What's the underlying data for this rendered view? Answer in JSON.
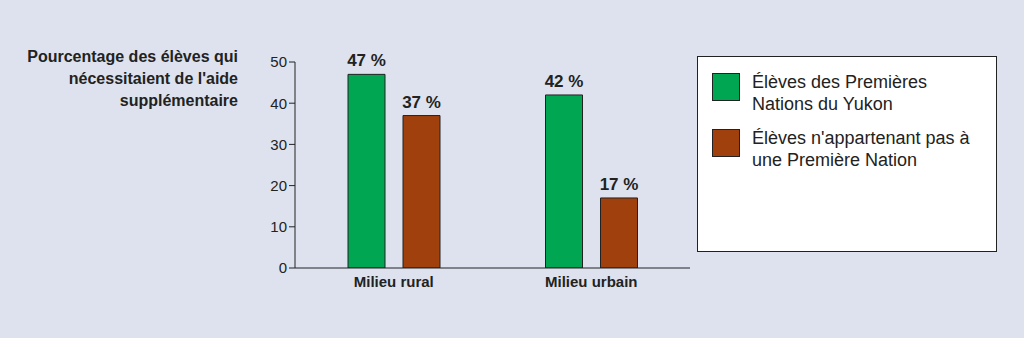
{
  "chart_data": {
    "type": "bar",
    "ylabel": "Pourcentage des élèves qui nécessitaient de l'aide supplémentaire",
    "categories": [
      "Milieu rural",
      "Milieu urbain"
    ],
    "series": [
      {
        "name": "Élèves des Premières Nations du Yukon",
        "color": "#00a651",
        "values": [
          47,
          42
        ],
        "value_labels": [
          "47 %",
          "42 %"
        ]
      },
      {
        "name": "Élèves n'appartenant pas à une Première Nation",
        "color": "#a0410d",
        "values": [
          37,
          17
        ],
        "value_labels": [
          "37 %",
          "17 %"
        ]
      }
    ],
    "ylim": [
      0,
      50
    ],
    "yticks": [
      0,
      10,
      20,
      30,
      40,
      50
    ],
    "data_labels": true,
    "legend": "right",
    "grid": false
  }
}
